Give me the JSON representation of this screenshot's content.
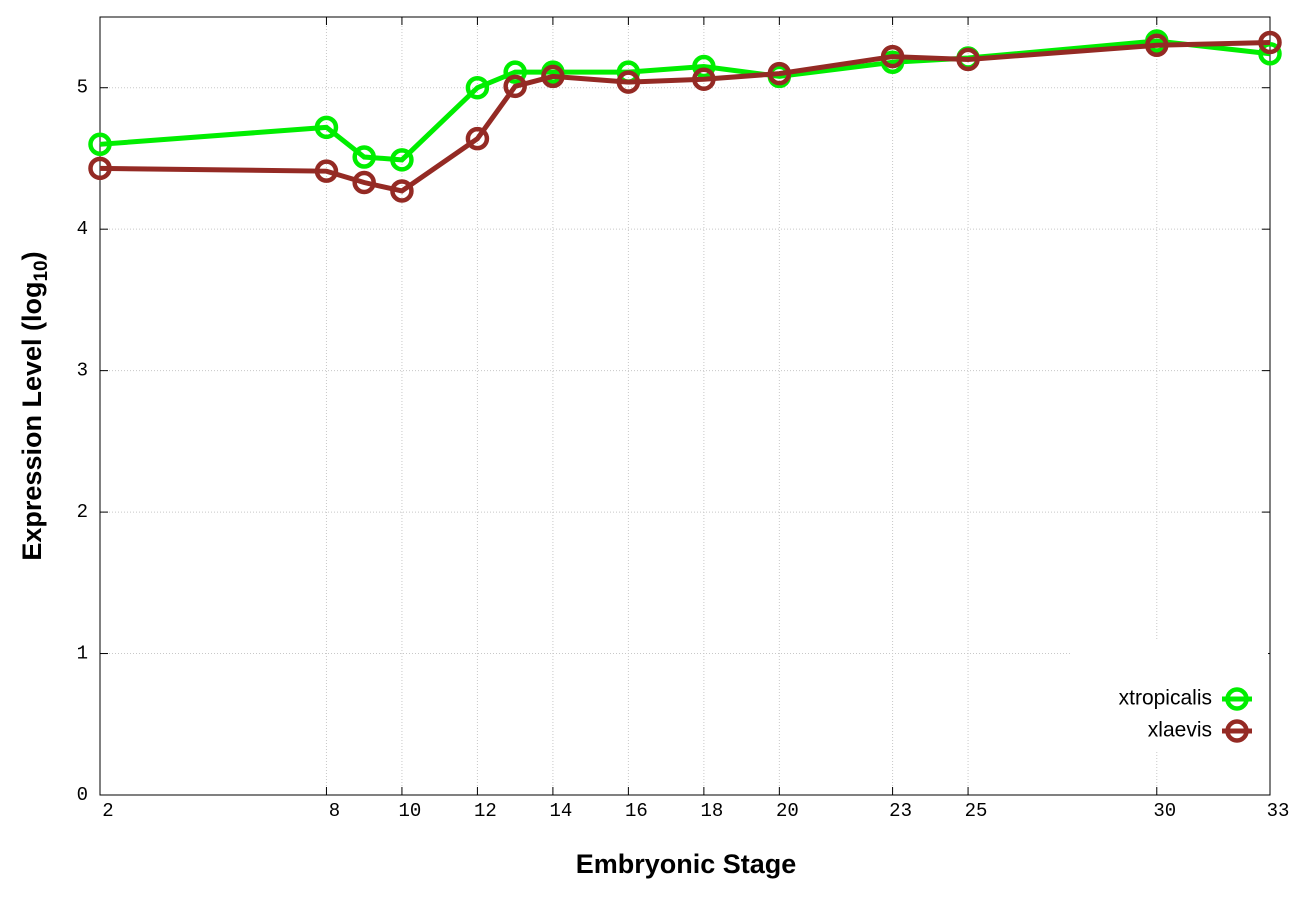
{
  "chart_data": {
    "type": "line",
    "xlabel": "Embryonic Stage",
    "ylabel": [
      "Expression Level (log",
      "10",
      ")"
    ],
    "x": [
      2,
      8,
      9,
      10,
      12,
      13,
      14,
      16,
      18,
      20,
      23,
      25,
      30,
      33
    ],
    "series": [
      {
        "name": "xtropicalis",
        "color": "#00ee00",
        "values": [
          4.6,
          4.72,
          4.51,
          4.49,
          5.0,
          5.11,
          5.11,
          5.11,
          5.15,
          5.08,
          5.18,
          5.21,
          5.33,
          5.24
        ]
      },
      {
        "name": "xlaevis",
        "color": "#942a24",
        "values": [
          4.43,
          4.41,
          4.33,
          4.27,
          4.64,
          5.01,
          5.08,
          5.04,
          5.06,
          5.1,
          5.22,
          5.2,
          5.3,
          5.32
        ]
      }
    ],
    "xlim": [
      2,
      33
    ],
    "xticks": [
      2,
      8,
      10,
      12,
      14,
      16,
      18,
      20,
      23,
      25,
      30,
      33
    ],
    "ylim": [
      0,
      5.5
    ],
    "yticks": [
      0,
      1,
      2,
      3,
      4,
      5
    ],
    "grid": true,
    "legend": "lower right"
  }
}
